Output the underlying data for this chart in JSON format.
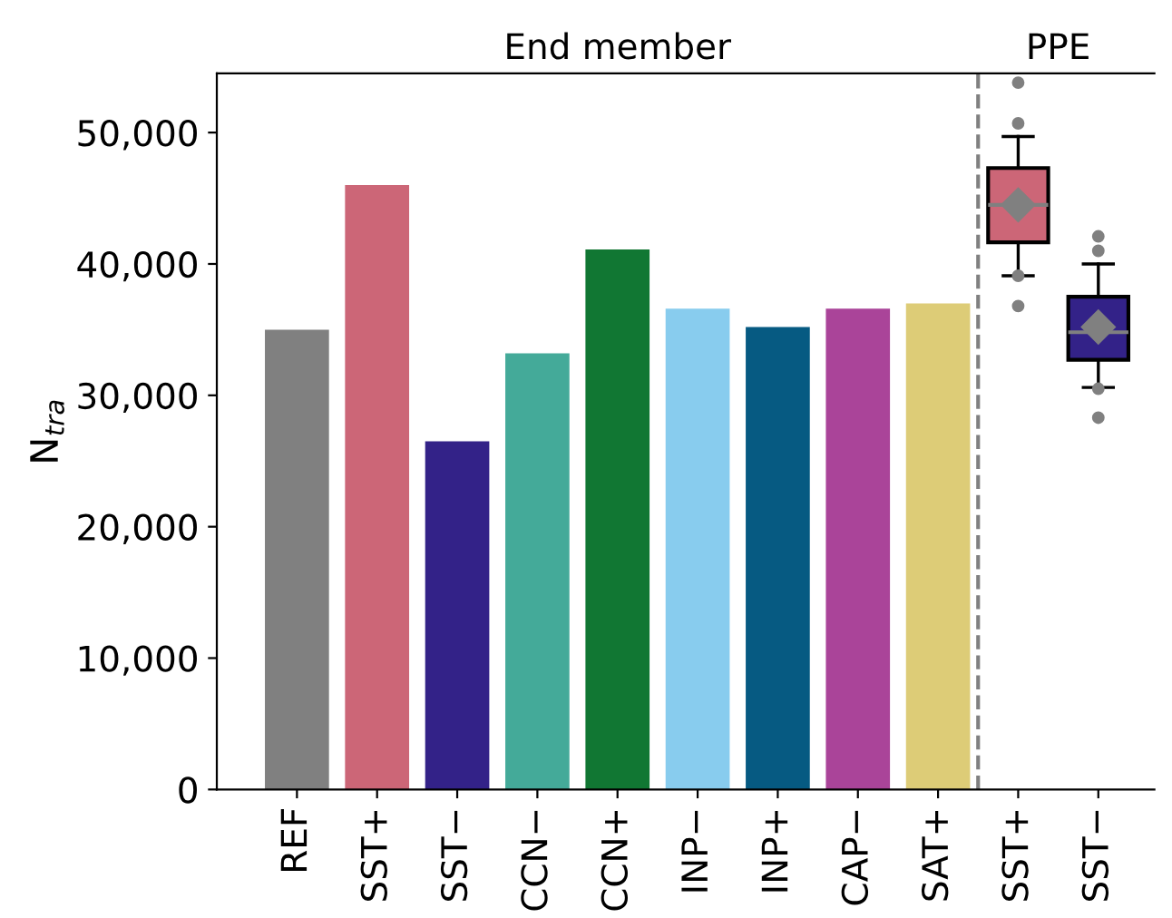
{
  "chart_data": {
    "type": "bar",
    "categories": [
      "REF",
      "SST+",
      "SST−",
      "CCN−",
      "CCN+",
      "INP−",
      "INP+",
      "CAP−",
      "SAT+",
      "SST+",
      "SST−"
    ],
    "ylabel": "N$_{tra}$",
    "annotations": [
      "End member",
      "PPE"
    ],
    "series": [
      {
        "values": [
          35000,
          46000,
          26500,
          33200,
          41100,
          36600,
          35200,
          36600,
          37000,
          null,
          null
        ],
        "colors": [
          "#808080",
          "#cc6677",
          "#332288",
          "#44aa99",
          "#117733",
          "#88ccee",
          "#065a82",
          "#aa4499",
          "#ddcc77",
          null,
          null
        ]
      },
      {
        "type": "box",
        "colors": [
          null,
          null,
          null,
          null,
          null,
          null,
          null,
          null,
          null,
          "#cc6677",
          "#332288"
        ],
        "boxes": [
          null,
          null,
          null,
          null,
          null,
          null,
          null,
          null,
          null,
          {
            "low": 39100,
            "q1": 41650,
            "median": 44500,
            "q3": 47300,
            "high": 49700,
            "mean": 44500,
            "outliers": [
              53800,
              50700,
              39100,
              36800
            ]
          },
          {
            "low": 30600,
            "q1": 32700,
            "median": 34800,
            "q3": 37500,
            "high": 40000,
            "mean": 35200,
            "outliers": [
              42100,
              41000,
              30500,
              28300
            ]
          }
        ]
      }
    ],
    "ylim": [
      0,
      54500
    ],
    "yticks": [
      0,
      {
        "value": 10000,
        "label": "10,000"
      },
      {
        "value": 20000,
        "label": "20,000"
      },
      {
        "value": 30000,
        "label": "30,000"
      },
      {
        "value": 40000,
        "label": "40,000"
      },
      {
        "value": 50000,
        "label": "50,000"
      }
    ],
    "grid": false
  }
}
